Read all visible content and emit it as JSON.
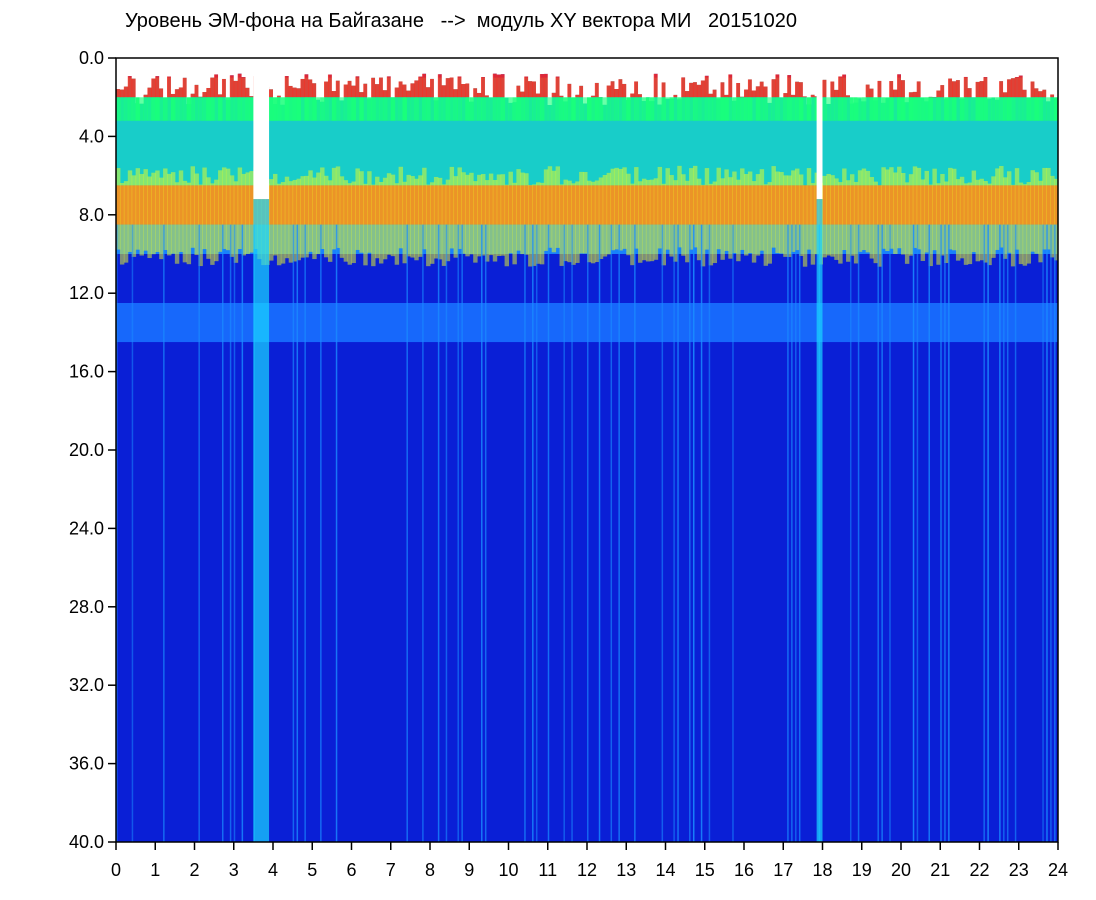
{
  "chart_data": {
    "type": "heatmap",
    "title": "Уровень ЭМ-фона на Байгазане   -->  модуль XY вектора МИ   20151020",
    "xlim": [
      0,
      24
    ],
    "ylim": [
      0,
      40
    ],
    "y_inverted": true,
    "x_ticks": [
      "0",
      "1",
      "2",
      "3",
      "4",
      "5",
      "6",
      "7",
      "8",
      "9",
      "10",
      "11",
      "12",
      "13",
      "14",
      "15",
      "16",
      "17",
      "18",
      "19",
      "20",
      "21",
      "22",
      "23",
      "24"
    ],
    "y_ticks": [
      "0.0",
      "4.0",
      "8.0",
      "12.0",
      "16.0",
      "20.0",
      "24.0",
      "28.0",
      "32.0",
      "36.0",
      "40.0"
    ],
    "colormap": [
      "#0a1fd6",
      "#1565ff",
      "#19d7ff",
      "#19ff7a",
      "#f0ff1e",
      "#ff2a1e"
    ],
    "background_color": "#0a1fd6",
    "bands": [
      {
        "y_from": 1.0,
        "y_to": 6.5,
        "level": "high",
        "color": "#19e0c8"
      },
      {
        "y_from": 6.5,
        "y_to": 8.5,
        "level": "peak",
        "color": "#ff2a1e"
      },
      {
        "y_from": 8.5,
        "y_to": 10.0,
        "level": "medium",
        "color": "#1a8cff"
      },
      {
        "y_from": 12.5,
        "y_to": 14.5,
        "level": "medium",
        "color": "#1870ff"
      },
      {
        "y_from": 14.5,
        "y_to": 40.0,
        "level": "low",
        "color": "#0a1fd6"
      }
    ],
    "gaps_x": [
      3.5,
      3.9,
      17.85,
      18.0
    ]
  }
}
